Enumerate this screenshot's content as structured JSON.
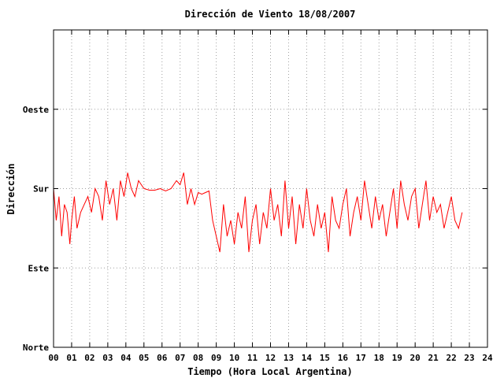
{
  "chart_data": {
    "type": "line",
    "title": "Dirección de Viento 18/08/2007",
    "xlabel": "Tiempo (Hora Local Argentina)",
    "ylabel": "Dirección",
    "xlim": [
      0,
      24
    ],
    "ylim": [
      0,
      4
    ],
    "x_ticks": [
      "00",
      "01",
      "02",
      "03",
      "04",
      "05",
      "06",
      "07",
      "08",
      "09",
      "10",
      "11",
      "12",
      "13",
      "14",
      "15",
      "16",
      "17",
      "18",
      "19",
      "20",
      "21",
      "22",
      "23",
      "24"
    ],
    "y_ticks": [
      {
        "value": 0,
        "label": "Norte"
      },
      {
        "value": 1,
        "label": "Este"
      },
      {
        "value": 2,
        "label": "Sur"
      },
      {
        "value": 3,
        "label": "Oeste"
      }
    ],
    "grid": true,
    "series_color": "#ff0000",
    "series": [
      {
        "x": [
          0.0,
          0.15,
          0.3,
          0.45,
          0.6,
          0.75,
          0.9,
          1.0,
          1.15,
          1.3,
          1.5,
          1.7,
          1.9,
          2.1,
          2.3,
          2.5,
          2.7,
          2.9,
          3.1,
          3.3,
          3.5,
          3.7,
          3.9,
          4.1,
          4.3,
          4.5,
          4.7,
          5.0,
          5.3,
          5.6,
          5.9,
          6.2,
          6.5,
          6.8,
          7.0,
          7.2,
          7.4,
          7.6,
          7.8,
          8.0,
          8.2,
          8.4,
          8.6,
          8.8,
          9.0,
          9.2,
          9.4,
          9.6,
          9.8,
          10.0,
          10.2,
          10.4,
          10.6,
          10.8,
          11.0,
          11.2,
          11.4,
          11.6,
          11.8,
          12.0,
          12.2,
          12.4,
          12.6,
          12.8,
          13.0,
          13.2,
          13.4,
          13.6,
          13.8,
          14.0,
          14.2,
          14.4,
          14.6,
          14.8,
          15.0,
          15.2,
          15.4,
          15.6,
          15.8,
          16.0,
          16.2,
          16.4,
          16.6,
          16.8,
          17.0,
          17.2,
          17.4,
          17.6,
          17.8,
          18.0,
          18.2,
          18.4,
          18.6,
          18.8,
          19.0,
          19.2,
          19.4,
          19.6,
          19.8,
          20.0,
          20.2,
          20.4,
          20.6,
          20.8,
          21.0,
          21.2,
          21.4,
          21.6,
          21.8,
          22.0,
          22.2,
          22.4,
          22.6
        ],
        "y": [
          2.0,
          1.6,
          1.9,
          1.4,
          1.8,
          1.7,
          1.3,
          1.6,
          1.9,
          1.5,
          1.7,
          1.8,
          1.9,
          1.7,
          2.0,
          1.9,
          1.6,
          2.1,
          1.8,
          2.0,
          1.6,
          2.1,
          1.9,
          2.2,
          2.0,
          1.9,
          2.1,
          2.0,
          1.98,
          1.98,
          2.0,
          1.97,
          2.0,
          2.1,
          2.05,
          2.2,
          1.8,
          2.0,
          1.8,
          1.95,
          1.93,
          1.95,
          1.97,
          1.6,
          1.4,
          1.2,
          1.8,
          1.4,
          1.6,
          1.3,
          1.7,
          1.5,
          1.9,
          1.2,
          1.6,
          1.8,
          1.3,
          1.7,
          1.5,
          2.0,
          1.6,
          1.8,
          1.4,
          2.1,
          1.5,
          1.9,
          1.3,
          1.8,
          1.5,
          2.0,
          1.6,
          1.4,
          1.8,
          1.5,
          1.7,
          1.2,
          1.9,
          1.6,
          1.5,
          1.8,
          2.0,
          1.4,
          1.7,
          1.9,
          1.6,
          2.1,
          1.8,
          1.5,
          1.9,
          1.6,
          1.8,
          1.4,
          1.7,
          2.0,
          1.5,
          2.1,
          1.8,
          1.6,
          1.9,
          2.0,
          1.5,
          1.8,
          2.1,
          1.6,
          1.9,
          1.7,
          1.8,
          1.5,
          1.7,
          1.9,
          1.6,
          1.5,
          1.7
        ]
      }
    ]
  }
}
